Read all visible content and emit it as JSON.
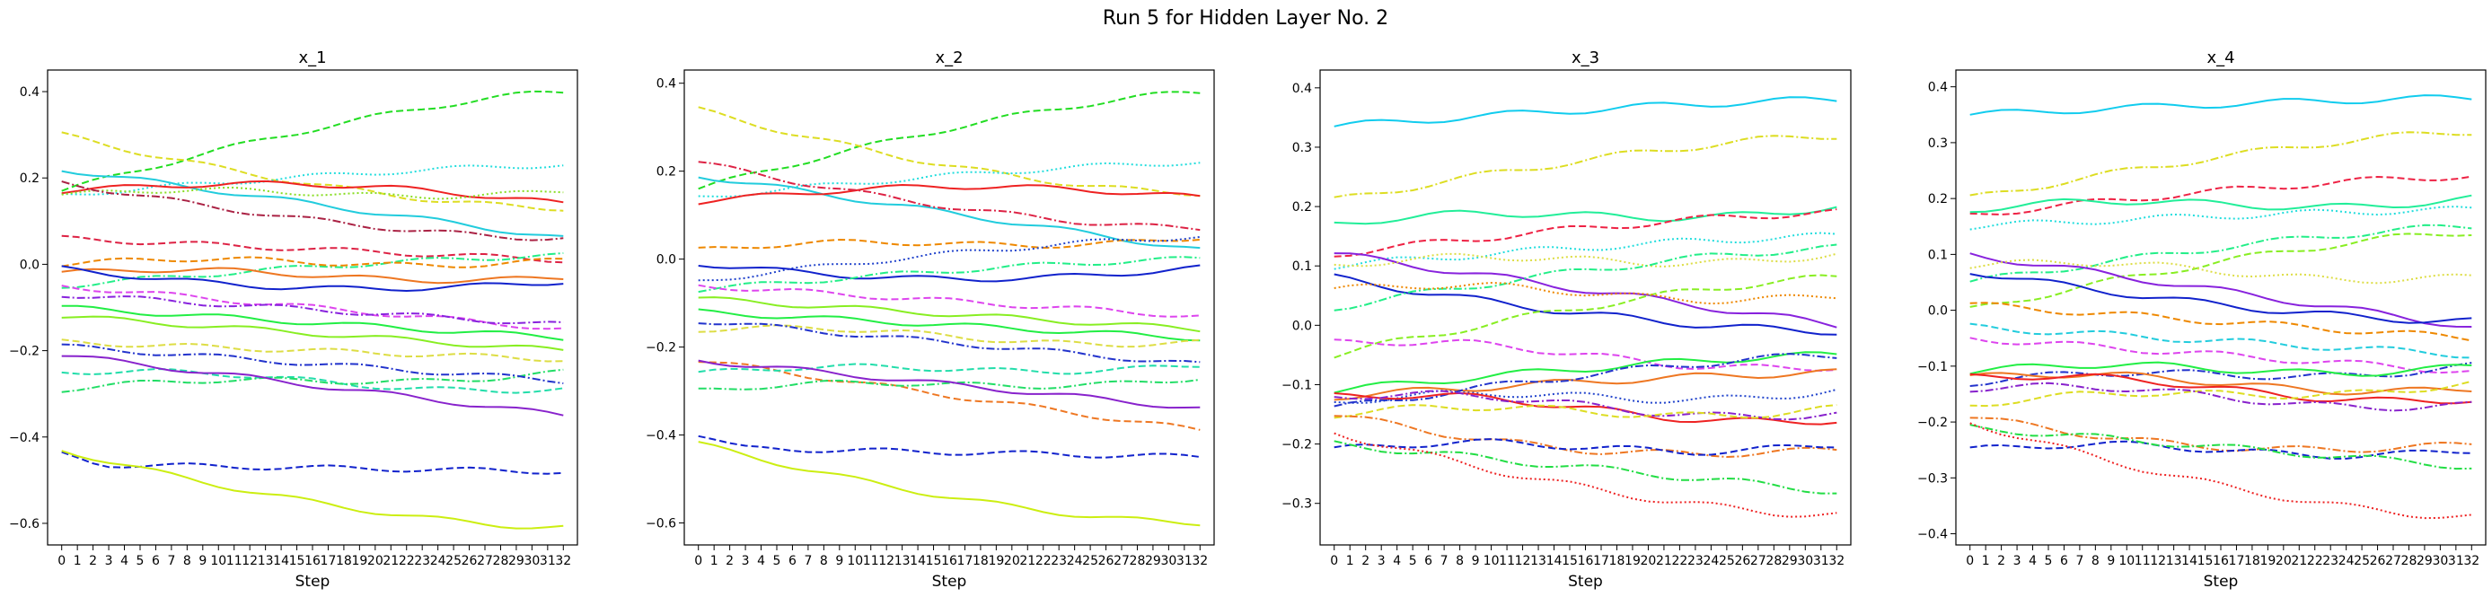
{
  "figure": {
    "title": "Run 5 for Hidden Layer No. 2"
  },
  "chart_data": [
    {
      "type": "line",
      "title": "x_1",
      "xlabel": "Step",
      "ylabel": "",
      "x": [
        0,
        1,
        2,
        3,
        4,
        5,
        6,
        7,
        8,
        9,
        10,
        11,
        12,
        13,
        14,
        15,
        16,
        17,
        18,
        19,
        20,
        21,
        22,
        23,
        24,
        25,
        26,
        27,
        28,
        29,
        30,
        31,
        32
      ],
      "ylim": [
        -0.65,
        0.45
      ],
      "yticks": [
        -0.6,
        -0.4,
        -0.2,
        0.0,
        0.2,
        0.4
      ],
      "ytick_labels": [
        "−0.6",
        "−0.4",
        "−0.2",
        "0.0",
        "0.2",
        "0.4"
      ],
      "series": [
        {
          "color": "#22dd22",
          "style": "dashed",
          "start": 0.17,
          "end": 0.4,
          "shape": "rise"
        },
        {
          "color": "#dddd22",
          "style": "dashed",
          "start": 0.3,
          "end": 0.13,
          "shape": "fall"
        },
        {
          "color": "#22dddd",
          "style": "dotted",
          "start": 0.16,
          "end": 0.23,
          "shape": "rise"
        },
        {
          "color": "#22ccdd",
          "style": "solid",
          "start": 0.22,
          "end": 0.06,
          "shape": "linear"
        },
        {
          "color": "#ee2222",
          "style": "solid",
          "start": 0.17,
          "end": 0.14,
          "shape": "bump"
        },
        {
          "color": "#88dd22",
          "style": "dotted",
          "start": 0.16,
          "end": 0.17,
          "shape": "flat"
        },
        {
          "color": "#dd2244",
          "style": "dashed",
          "start": 0.06,
          "end": 0.01,
          "shape": "linear"
        },
        {
          "color": "#aa2244",
          "style": "dashdot",
          "start": 0.19,
          "end": 0.06,
          "shape": "fall"
        },
        {
          "color": "#22ee88",
          "style": "dashdot",
          "start": -0.05,
          "end": 0.02,
          "shape": "rise"
        },
        {
          "color": "#ee8800",
          "style": "dashed",
          "start": 0.0,
          "end": 0.01,
          "shape": "flat"
        },
        {
          "color": "#ee7722",
          "style": "solid",
          "start": -0.02,
          "end": -0.03,
          "shape": "flat"
        },
        {
          "color": "#1122cc",
          "style": "solid",
          "start": -0.01,
          "end": -0.04,
          "shape": "dip"
        },
        {
          "color": "#dd44ee",
          "style": "dashed",
          "start": -0.05,
          "end": -0.15,
          "shape": "linear"
        },
        {
          "color": "#8822dd",
          "style": "dashdot",
          "start": -0.07,
          "end": -0.14,
          "shape": "linear"
        },
        {
          "color": "#88ee22",
          "style": "solid",
          "start": -0.12,
          "end": -0.2,
          "shape": "linear"
        },
        {
          "color": "#22ee44",
          "style": "solid",
          "start": -0.1,
          "end": -0.17,
          "shape": "linear"
        },
        {
          "color": "#dddd44",
          "style": "dashed",
          "start": -0.18,
          "end": -0.22,
          "shape": "linear"
        },
        {
          "color": "#22ddaa",
          "style": "dashed",
          "start": -0.25,
          "end": -0.29,
          "shape": "flat"
        },
        {
          "color": "#22dd66",
          "style": "dashdot",
          "start": -0.29,
          "end": -0.25,
          "shape": "flat"
        },
        {
          "color": "#8822cc",
          "style": "solid",
          "start": -0.21,
          "end": -0.35,
          "shape": "linear"
        },
        {
          "color": "#2233cc",
          "style": "dashdot",
          "start": -0.19,
          "end": -0.27,
          "shape": "linear"
        },
        {
          "color": "#1122cc",
          "style": "dashed",
          "start": -0.44,
          "end": -0.48,
          "shape": "dropflat"
        },
        {
          "color": "#ccee11",
          "style": "solid",
          "start": -0.43,
          "end": -0.61,
          "shape": "fall"
        }
      ]
    },
    {
      "type": "line",
      "title": "x_2",
      "xlabel": "Step",
      "ylabel": "",
      "x": [
        0,
        1,
        2,
        3,
        4,
        5,
        6,
        7,
        8,
        9,
        10,
        11,
        12,
        13,
        14,
        15,
        16,
        17,
        18,
        19,
        20,
        21,
        22,
        23,
        24,
        25,
        26,
        27,
        28,
        29,
        30,
        31,
        32
      ],
      "ylim": [
        -0.65,
        0.43
      ],
      "yticks": [
        -0.6,
        -0.4,
        -0.2,
        0.0,
        0.2,
        0.4
      ],
      "ytick_labels": [
        "−0.6",
        "−0.4",
        "−0.2",
        "0.0",
        "0.2",
        "0.4"
      ],
      "series": [
        {
          "color": "#22dd22",
          "style": "dashed",
          "start": 0.16,
          "end": 0.38,
          "shape": "rise"
        },
        {
          "color": "#dddd22",
          "style": "dashed",
          "start": 0.34,
          "end": 0.15,
          "shape": "fall"
        },
        {
          "color": "#22dddd",
          "style": "dotted",
          "start": 0.14,
          "end": 0.22,
          "shape": "rise"
        },
        {
          "color": "#22ccdd",
          "style": "solid",
          "start": 0.19,
          "end": 0.02,
          "shape": "linear"
        },
        {
          "color": "#ee2222",
          "style": "solid",
          "start": 0.13,
          "end": 0.14,
          "shape": "bump"
        },
        {
          "color": "#dd2244",
          "style": "dashdot",
          "start": 0.22,
          "end": 0.07,
          "shape": "fall"
        },
        {
          "color": "#ee8800",
          "style": "dashed",
          "start": 0.02,
          "end": 0.05,
          "shape": "flat"
        },
        {
          "color": "#2244cc",
          "style": "dotted",
          "start": -0.05,
          "end": 0.05,
          "shape": "rise"
        },
        {
          "color": "#1122cc",
          "style": "solid",
          "start": -0.01,
          "end": -0.02,
          "shape": "dip"
        },
        {
          "color": "#22ee88",
          "style": "dashdot",
          "start": -0.07,
          "end": 0.0,
          "shape": "rise"
        },
        {
          "color": "#88ee22",
          "style": "solid",
          "start": -0.09,
          "end": -0.16,
          "shape": "linear"
        },
        {
          "color": "#22ee44",
          "style": "solid",
          "start": -0.12,
          "end": -0.18,
          "shape": "linear"
        },
        {
          "color": "#dd44ee",
          "style": "dashed",
          "start": -0.06,
          "end": -0.13,
          "shape": "linear"
        },
        {
          "color": "#dddd44",
          "style": "dashed",
          "start": -0.16,
          "end": -0.19,
          "shape": "flat"
        },
        {
          "color": "#ee7722",
          "style": "dashed",
          "start": -0.23,
          "end": -0.39,
          "shape": "linear"
        },
        {
          "color": "#22ddaa",
          "style": "dashed",
          "start": -0.26,
          "end": -0.24,
          "shape": "flat"
        },
        {
          "color": "#22dd66",
          "style": "dashdot",
          "start": -0.3,
          "end": -0.27,
          "shape": "flat"
        },
        {
          "color": "#8822cc",
          "style": "solid",
          "start": -0.23,
          "end": -0.34,
          "shape": "linear"
        },
        {
          "color": "#2233cc",
          "style": "dashdot",
          "start": -0.14,
          "end": -0.24,
          "shape": "linear"
        },
        {
          "color": "#1122cc",
          "style": "dashed",
          "start": -0.4,
          "end": -0.45,
          "shape": "dropflat"
        },
        {
          "color": "#ccee11",
          "style": "solid",
          "start": -0.42,
          "end": -0.6,
          "shape": "fall"
        }
      ]
    },
    {
      "type": "line",
      "title": "x_3",
      "xlabel": "Step",
      "ylabel": "",
      "x": [
        0,
        1,
        2,
        3,
        4,
        5,
        6,
        7,
        8,
        9,
        10,
        11,
        12,
        13,
        14,
        15,
        16,
        17,
        18,
        19,
        20,
        21,
        22,
        23,
        24,
        25,
        26,
        27,
        28,
        29,
        30,
        31,
        32
      ],
      "ylim": [
        -0.37,
        0.43
      ],
      "yticks": [
        -0.3,
        -0.2,
        -0.1,
        0.0,
        0.1,
        0.2,
        0.3,
        0.4
      ],
      "ytick_labels": [
        "−0.3",
        "−0.2",
        "−0.1",
        "0.0",
        "0.1",
        "0.2",
        "0.3",
        "0.4"
      ],
      "series": [
        {
          "color": "#11ccee",
          "style": "solid",
          "start": 0.335,
          "end": 0.38,
          "shape": "rise"
        },
        {
          "color": "#dddd22",
          "style": "dashdot",
          "start": 0.21,
          "end": 0.32,
          "shape": "rise"
        },
        {
          "color": "#22ee99",
          "style": "solid",
          "start": 0.17,
          "end": 0.2,
          "shape": "flat"
        },
        {
          "color": "#ee2244",
          "style": "dashed",
          "start": 0.12,
          "end": 0.19,
          "shape": "rise"
        },
        {
          "color": "#22dddd",
          "style": "dotted",
          "start": 0.1,
          "end": 0.15,
          "shape": "rise"
        },
        {
          "color": "#8822dd",
          "style": "solid",
          "start": 0.12,
          "end": 0.0,
          "shape": "linear"
        },
        {
          "color": "#1122cc",
          "style": "solid",
          "start": 0.08,
          "end": -0.01,
          "shape": "fall"
        },
        {
          "color": "#dddd44",
          "style": "dotted",
          "start": 0.1,
          "end": 0.12,
          "shape": "flat"
        },
        {
          "color": "#22ee88",
          "style": "dashdot",
          "start": 0.03,
          "end": 0.13,
          "shape": "rise"
        },
        {
          "color": "#88ee22",
          "style": "dashed",
          "start": -0.05,
          "end": 0.08,
          "shape": "rise"
        },
        {
          "color": "#ee8800",
          "style": "dotted",
          "start": 0.06,
          "end": 0.05,
          "shape": "flat"
        },
        {
          "color": "#dd44ee",
          "style": "dashed",
          "start": -0.03,
          "end": -0.07,
          "shape": "flat"
        },
        {
          "color": "#2244cc",
          "style": "dotted",
          "start": -0.13,
          "end": -0.11,
          "shape": "flat"
        },
        {
          "color": "#ee7722",
          "style": "solid",
          "start": -0.12,
          "end": -0.08,
          "shape": "rise"
        },
        {
          "color": "#22ee44",
          "style": "solid",
          "start": -0.11,
          "end": -0.05,
          "shape": "rise"
        },
        {
          "color": "#2233cc",
          "style": "dashdot",
          "start": -0.14,
          "end": -0.05,
          "shape": "rise"
        },
        {
          "color": "#ee2222",
          "style": "solid",
          "start": -0.12,
          "end": -0.16,
          "shape": "flat"
        },
        {
          "color": "#8822cc",
          "style": "dashdot",
          "start": -0.12,
          "end": -0.15,
          "shape": "flat"
        },
        {
          "color": "#dddd22",
          "style": "dashed",
          "start": -0.15,
          "end": -0.14,
          "shape": "flat"
        },
        {
          "color": "#ee7722",
          "style": "dashdot",
          "start": -0.15,
          "end": -0.21,
          "shape": "dip"
        },
        {
          "color": "#1122cc",
          "style": "dashed",
          "start": -0.21,
          "end": -0.2,
          "shape": "flat"
        },
        {
          "color": "#22dd44",
          "style": "dashdot",
          "start": -0.2,
          "end": -0.28,
          "shape": "linear"
        },
        {
          "color": "#ee2222",
          "style": "dotted",
          "start": -0.18,
          "end": -0.32,
          "shape": "fall"
        }
      ]
    },
    {
      "type": "line",
      "title": "x_4",
      "xlabel": "Step",
      "ylabel": "",
      "x": [
        0,
        1,
        2,
        3,
        4,
        5,
        6,
        7,
        8,
        9,
        10,
        11,
        12,
        13,
        14,
        15,
        16,
        17,
        18,
        19,
        20,
        21,
        22,
        23,
        24,
        25,
        26,
        27,
        28,
        29,
        30,
        31,
        32
      ],
      "ylim": [
        -0.42,
        0.43
      ],
      "yticks": [
        -0.4,
        -0.3,
        -0.2,
        -0.1,
        0.0,
        0.1,
        0.2,
        0.3,
        0.4
      ],
      "ytick_labels": [
        "−0.4",
        "−0.3",
        "−0.2",
        "−0.1",
        "0.0",
        "0.1",
        "0.2",
        "0.3",
        "0.4"
      ],
      "series": [
        {
          "color": "#11ccee",
          "style": "solid",
          "start": 0.35,
          "end": 0.38,
          "shape": "rise"
        },
        {
          "color": "#dddd22",
          "style": "dashdot",
          "start": 0.2,
          "end": 0.32,
          "shape": "rise"
        },
        {
          "color": "#ee2244",
          "style": "dashed",
          "start": 0.17,
          "end": 0.24,
          "shape": "rise"
        },
        {
          "color": "#22ee99",
          "style": "solid",
          "start": 0.18,
          "end": 0.2,
          "shape": "flat"
        },
        {
          "color": "#22dddd",
          "style": "dotted",
          "start": 0.15,
          "end": 0.18,
          "shape": "rise"
        },
        {
          "color": "#22ee88",
          "style": "dashdot",
          "start": 0.05,
          "end": 0.15,
          "shape": "rise"
        },
        {
          "color": "#88ee22",
          "style": "dashed",
          "start": 0.0,
          "end": 0.14,
          "shape": "rise"
        },
        {
          "color": "#8822dd",
          "style": "solid",
          "start": 0.1,
          "end": -0.03,
          "shape": "linear"
        },
        {
          "color": "#1122cc",
          "style": "solid",
          "start": 0.07,
          "end": -0.02,
          "shape": "fall"
        },
        {
          "color": "#dddd44",
          "style": "dotted",
          "start": 0.08,
          "end": 0.06,
          "shape": "flat"
        },
        {
          "color": "#ee8800",
          "style": "dashed",
          "start": 0.01,
          "end": -0.05,
          "shape": "linear"
        },
        {
          "color": "#22ccdd",
          "style": "dashed",
          "start": -0.03,
          "end": -0.08,
          "shape": "linear"
        },
        {
          "color": "#dd44ee",
          "style": "dashed",
          "start": -0.05,
          "end": -0.11,
          "shape": "linear"
        },
        {
          "color": "#2233cc",
          "style": "dashdot",
          "start": -0.13,
          "end": -0.1,
          "shape": "flat"
        },
        {
          "color": "#22ee44",
          "style": "solid",
          "start": -0.11,
          "end": -0.1,
          "shape": "flat"
        },
        {
          "color": "#ee7722",
          "style": "solid",
          "start": -0.12,
          "end": -0.14,
          "shape": "flat"
        },
        {
          "color": "#ee2222",
          "style": "solid",
          "start": -0.12,
          "end": -0.16,
          "shape": "flat"
        },
        {
          "color": "#dddd22",
          "style": "dashed",
          "start": -0.17,
          "end": -0.13,
          "shape": "flat"
        },
        {
          "color": "#8822cc",
          "style": "dashdot",
          "start": -0.14,
          "end": -0.17,
          "shape": "flat"
        },
        {
          "color": "#ee7722",
          "style": "dashdot",
          "start": -0.19,
          "end": -0.24,
          "shape": "dip"
        },
        {
          "color": "#1122cc",
          "style": "dashed",
          "start": -0.25,
          "end": -0.25,
          "shape": "flat"
        },
        {
          "color": "#22dd44",
          "style": "dashdot",
          "start": -0.21,
          "end": -0.28,
          "shape": "linear"
        },
        {
          "color": "#ee2222",
          "style": "dotted",
          "start": -0.2,
          "end": -0.37,
          "shape": "fall"
        }
      ]
    }
  ]
}
